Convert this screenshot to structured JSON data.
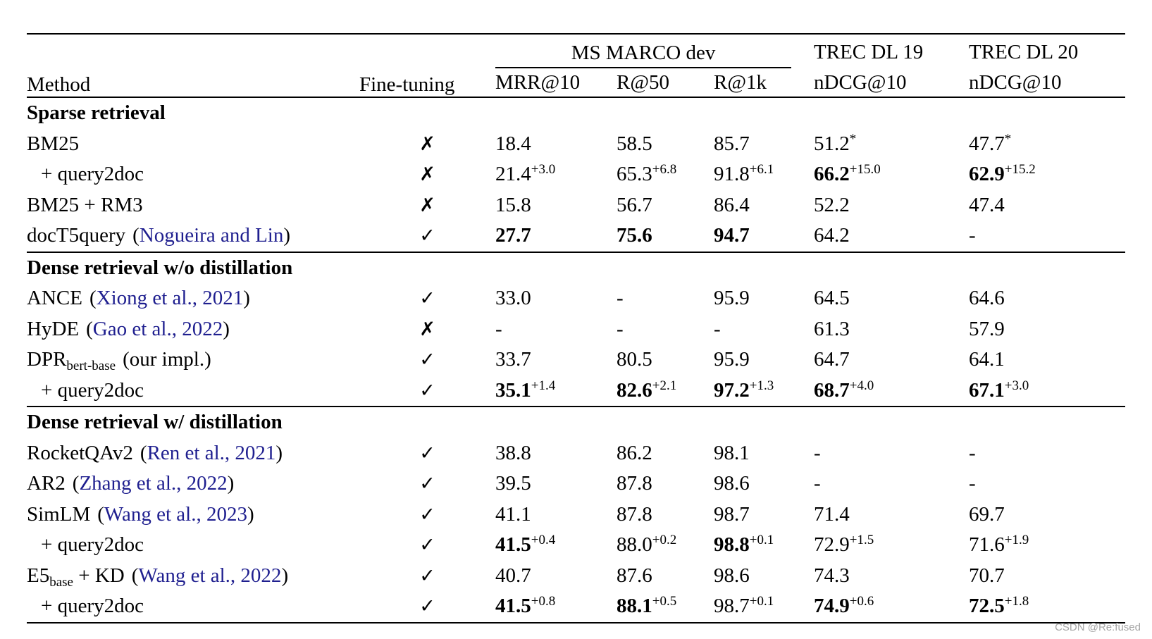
{
  "punct": {
    "open": "(",
    "close": ")"
  },
  "glyphs": {
    "check": "✓",
    "cross": "✗"
  },
  "colors": {
    "text": "#000000",
    "citation": "#1f1f8f",
    "rule": "#000000",
    "watermark": "#a6a6a6"
  },
  "watermark": {
    "text": "CSDN @Re:fused"
  },
  "header": {
    "method": "Method",
    "fine_tuning": "Fine-tuning",
    "groups": {
      "msmarco": "MS MARCO dev",
      "trec19": "TREC DL 19",
      "trec20": "TREC DL 20"
    },
    "metrics": {
      "mrr10": "MRR@10",
      "r50": "R@50",
      "r1k": "R@1k",
      "ndcg19": "nDCG@10",
      "ndcg20": "nDCG@10"
    }
  },
  "sections": [
    {
      "title": "Sparse retrieval",
      "rows": [
        {
          "method": {
            "text": "BM25",
            "sub": null,
            "post": null,
            "cite": null,
            "note": null,
            "indent": false
          },
          "finetuned": false,
          "cells": [
            {
              "v": "18.4"
            },
            {
              "v": "58.5"
            },
            {
              "v": "85.7"
            },
            {
              "v": "51.2",
              "sup": "*"
            },
            {
              "v": "47.7",
              "sup": "*"
            }
          ]
        },
        {
          "method": {
            "text": "+ query2doc",
            "sub": null,
            "post": null,
            "cite": null,
            "note": null,
            "indent": true
          },
          "finetuned": false,
          "cells": [
            {
              "v": "21.4",
              "sup": "+3.0"
            },
            {
              "v": "65.3",
              "sup": "+6.8"
            },
            {
              "v": "91.8",
              "sup": "+6.1"
            },
            {
              "v": "66.2",
              "sup": "+15.0",
              "bold": true
            },
            {
              "v": "62.9",
              "sup": "+15.2",
              "bold": true
            }
          ]
        },
        {
          "method": {
            "text": "BM25 + RM3",
            "sub": null,
            "post": null,
            "cite": null,
            "note": null,
            "indent": false
          },
          "finetuned": false,
          "cells": [
            {
              "v": "15.8"
            },
            {
              "v": "56.7"
            },
            {
              "v": "86.4"
            },
            {
              "v": "52.2"
            },
            {
              "v": "47.4"
            }
          ]
        },
        {
          "method": {
            "text": "docT5query",
            "sub": null,
            "post": null,
            "cite": "Nogueira and Lin",
            "note": null,
            "indent": false
          },
          "finetuned": true,
          "cells": [
            {
              "v": "27.7",
              "bold": true
            },
            {
              "v": "75.6",
              "bold": true
            },
            {
              "v": "94.7",
              "bold": true
            },
            {
              "v": "64.2"
            },
            {
              "v": "-"
            }
          ]
        }
      ]
    },
    {
      "title": "Dense retrieval w/o distillation",
      "rows": [
        {
          "method": {
            "text": "ANCE",
            "sub": null,
            "post": null,
            "cite": "Xiong et al., 2021",
            "note": null,
            "indent": false
          },
          "finetuned": true,
          "cells": [
            {
              "v": "33.0"
            },
            {
              "v": "-"
            },
            {
              "v": "95.9"
            },
            {
              "v": "64.5"
            },
            {
              "v": "64.6"
            }
          ]
        },
        {
          "method": {
            "text": "HyDE",
            "sub": null,
            "post": null,
            "cite": "Gao et al., 2022",
            "note": null,
            "indent": false
          },
          "finetuned": false,
          "cells": [
            {
              "v": "-"
            },
            {
              "v": "-"
            },
            {
              "v": "-"
            },
            {
              "v": "61.3"
            },
            {
              "v": "57.9"
            }
          ]
        },
        {
          "method": {
            "text": "DPR",
            "sub": "bert-base",
            "post": null,
            "cite": null,
            "note": "our impl.",
            "indent": false
          },
          "finetuned": true,
          "cells": [
            {
              "v": "33.7"
            },
            {
              "v": "80.5"
            },
            {
              "v": "95.9"
            },
            {
              "v": "64.7"
            },
            {
              "v": "64.1"
            }
          ]
        },
        {
          "method": {
            "text": "+ query2doc",
            "sub": null,
            "post": null,
            "cite": null,
            "note": null,
            "indent": true
          },
          "finetuned": true,
          "cells": [
            {
              "v": "35.1",
              "sup": "+1.4",
              "bold": true
            },
            {
              "v": "82.6",
              "sup": "+2.1",
              "bold": true
            },
            {
              "v": "97.2",
              "sup": "+1.3",
              "bold": true
            },
            {
              "v": "68.7",
              "sup": "+4.0",
              "bold": true
            },
            {
              "v": "67.1",
              "sup": "+3.0",
              "bold": true
            }
          ]
        }
      ]
    },
    {
      "title": "Dense retrieval w/ distillation",
      "rows": [
        {
          "method": {
            "text": "RocketQAv2",
            "sub": null,
            "post": null,
            "cite": "Ren et al., 2021",
            "note": null,
            "indent": false
          },
          "finetuned": true,
          "cells": [
            {
              "v": "38.8"
            },
            {
              "v": "86.2"
            },
            {
              "v": "98.1"
            },
            {
              "v": "-"
            },
            {
              "v": "-"
            }
          ]
        },
        {
          "method": {
            "text": "AR2",
            "sub": null,
            "post": null,
            "cite": "Zhang et al., 2022",
            "note": null,
            "indent": false
          },
          "finetuned": true,
          "cells": [
            {
              "v": "39.5"
            },
            {
              "v": "87.8"
            },
            {
              "v": "98.6"
            },
            {
              "v": "-"
            },
            {
              "v": "-"
            }
          ]
        },
        {
          "method": {
            "text": "SimLM",
            "sub": null,
            "post": null,
            "cite": "Wang et al., 2023",
            "note": null,
            "indent": false
          },
          "finetuned": true,
          "cells": [
            {
              "v": "41.1"
            },
            {
              "v": "87.8"
            },
            {
              "v": "98.7"
            },
            {
              "v": "71.4"
            },
            {
              "v": "69.7"
            }
          ]
        },
        {
          "method": {
            "text": "+ query2doc",
            "sub": null,
            "post": null,
            "cite": null,
            "note": null,
            "indent": true
          },
          "finetuned": true,
          "cells": [
            {
              "v": "41.5",
              "sup": "+0.4",
              "bold": true
            },
            {
              "v": "88.0",
              "sup": "+0.2"
            },
            {
              "v": "98.8",
              "sup": "+0.1",
              "bold": true
            },
            {
              "v": "72.9",
              "sup": "+1.5"
            },
            {
              "v": "71.6",
              "sup": "+1.9"
            }
          ]
        },
        {
          "method": {
            "text": "E5",
            "sub": "base",
            "post": " + KD",
            "cite": "Wang et al., 2022",
            "note": null,
            "indent": false
          },
          "finetuned": true,
          "cells": [
            {
              "v": "40.7"
            },
            {
              "v": "87.6"
            },
            {
              "v": "98.6"
            },
            {
              "v": "74.3"
            },
            {
              "v": "70.7"
            }
          ]
        },
        {
          "method": {
            "text": "+ query2doc",
            "sub": null,
            "post": null,
            "cite": null,
            "note": null,
            "indent": true
          },
          "finetuned": true,
          "cells": [
            {
              "v": "41.5",
              "sup": "+0.8",
              "bold": true
            },
            {
              "v": "88.1",
              "sup": "+0.5",
              "bold": true
            },
            {
              "v": "98.7",
              "sup": "+0.1"
            },
            {
              "v": "74.9",
              "sup": "+0.6",
              "bold": true
            },
            {
              "v": "72.5",
              "sup": "+1.8",
              "bold": true
            }
          ]
        }
      ]
    }
  ]
}
